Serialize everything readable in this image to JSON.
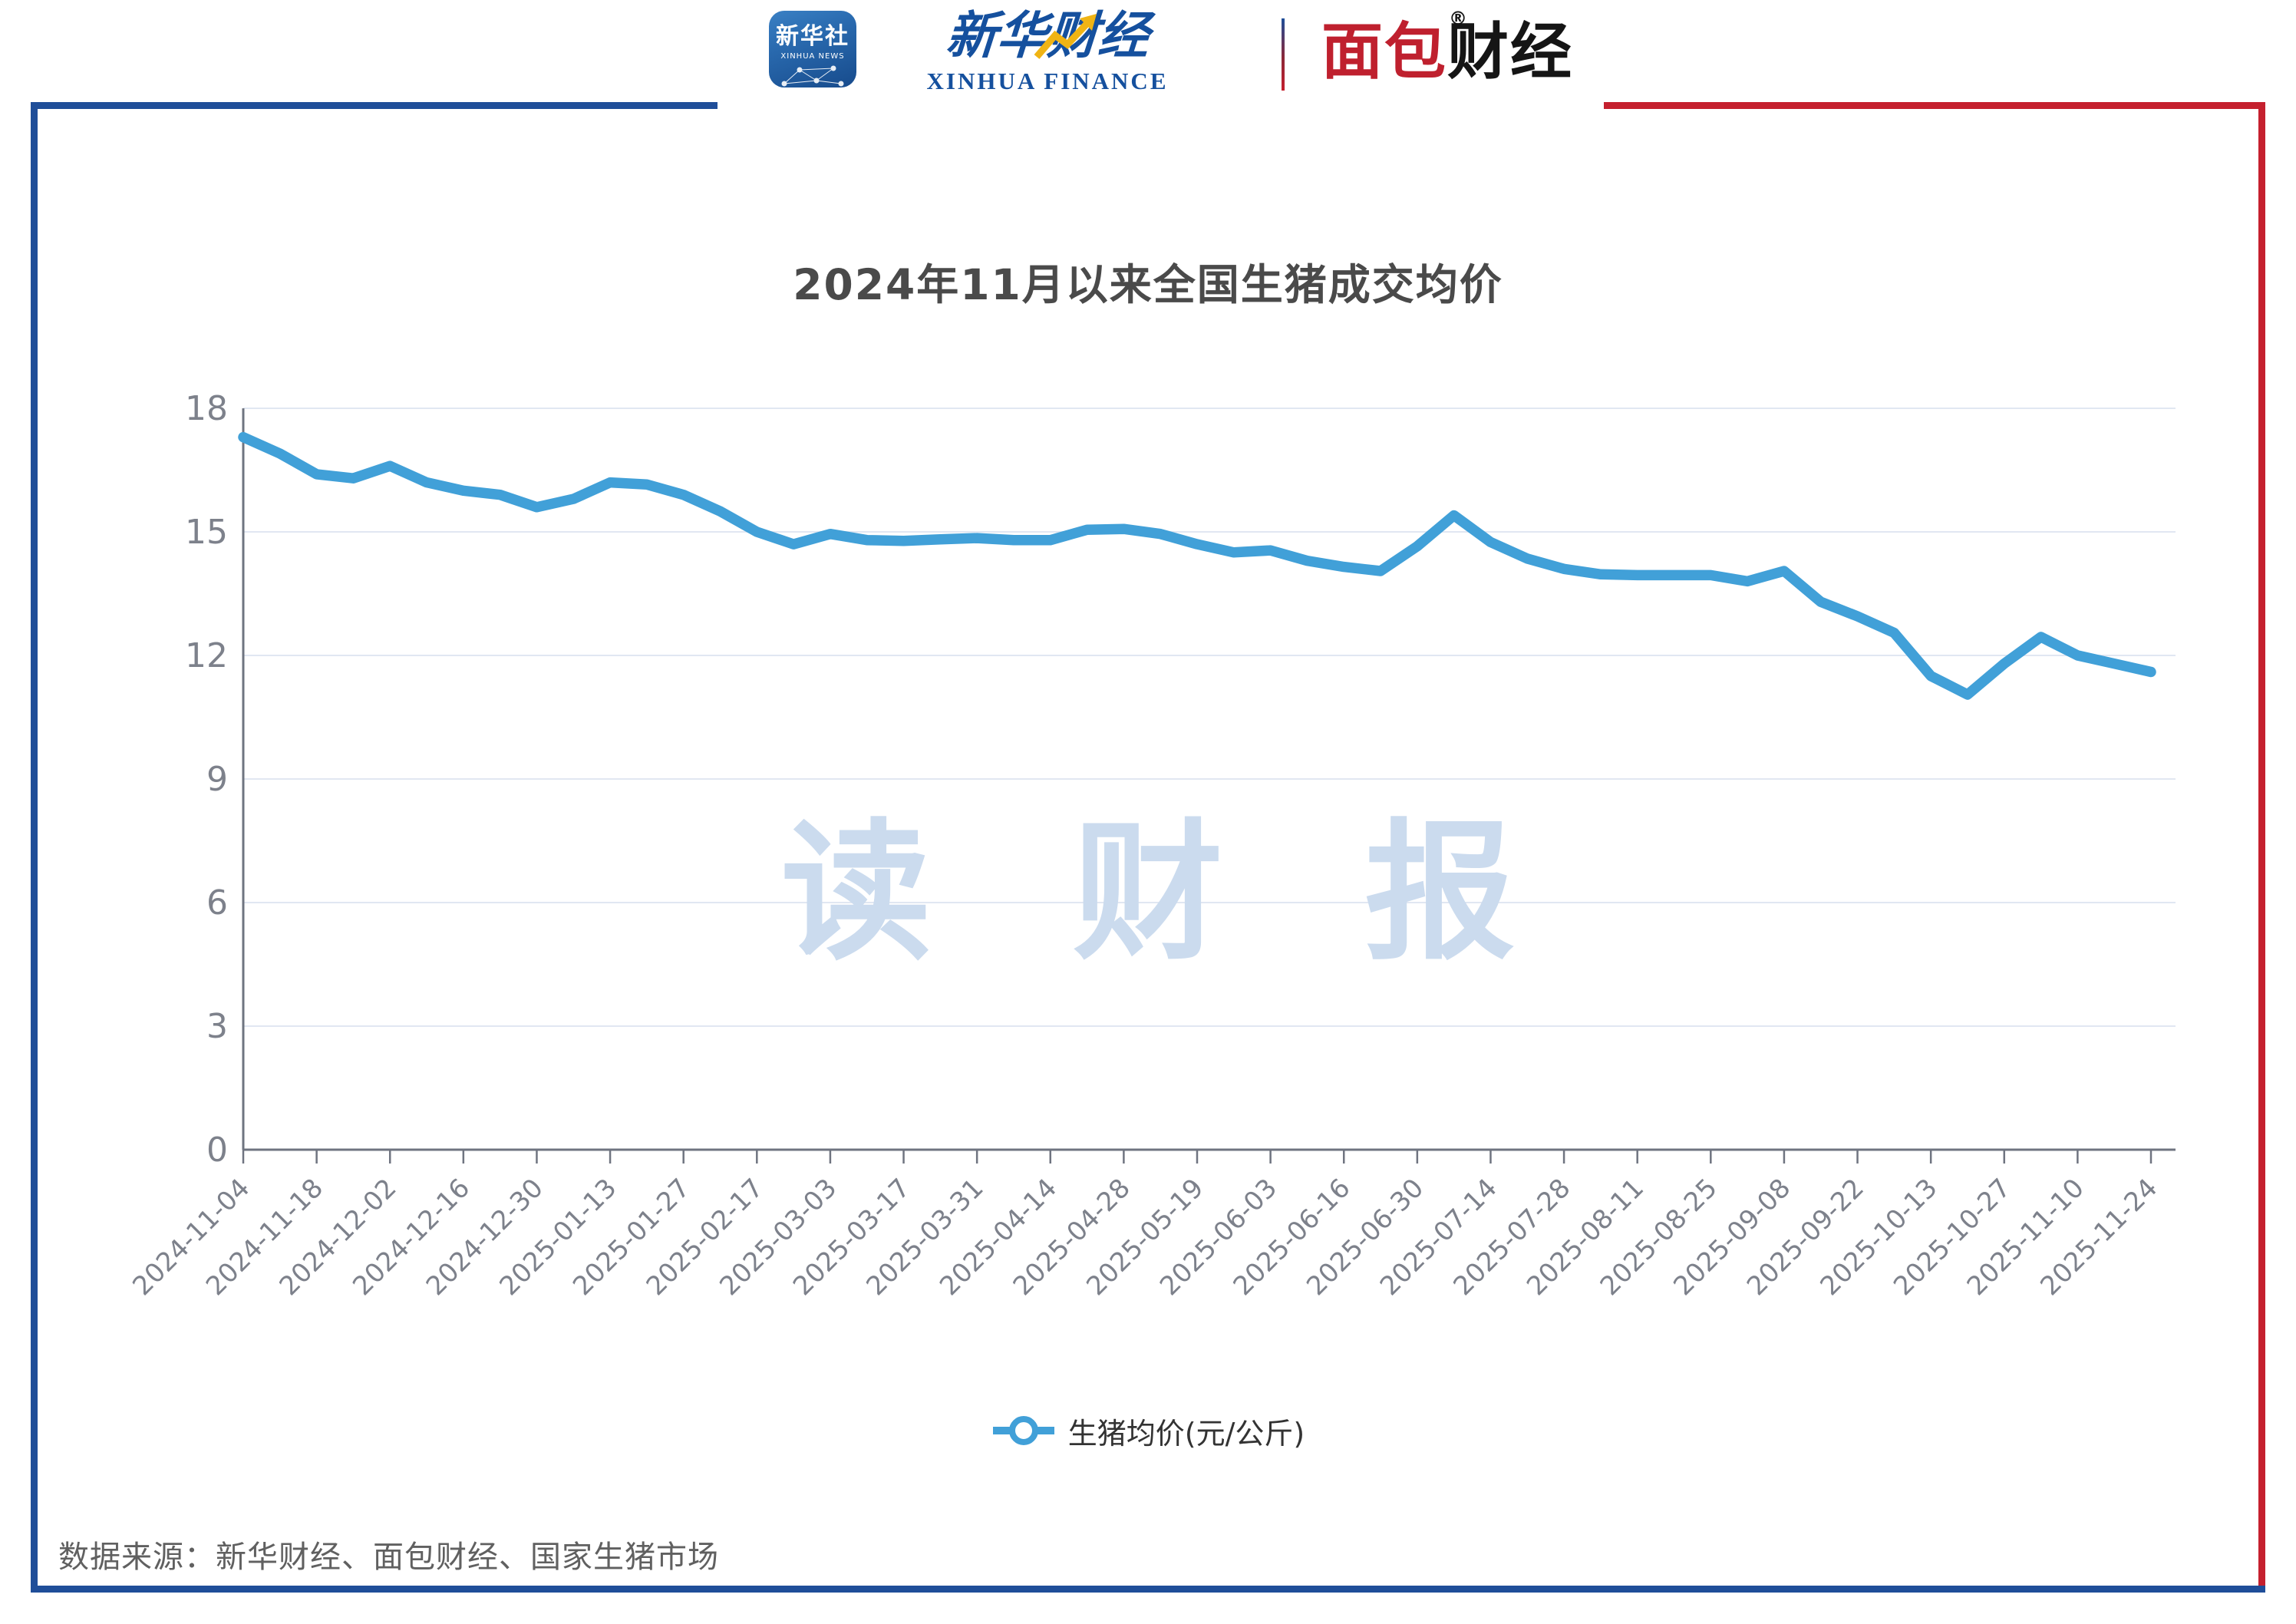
{
  "header": {
    "xinhua_news_icon": {
      "cn": "新华社",
      "en": "XINHUA NEWS"
    },
    "xinhua_finance": {
      "cn": "新华财经",
      "en": "XINHUA FINANCE"
    },
    "mianbao": {
      "part_red": "面包",
      "part_black": "财经",
      "reg_mark": "®"
    }
  },
  "colors": {
    "frame_blue": "#1f4e99",
    "frame_red": "#c5202e",
    "line_blue": "#41a0d8",
    "grid_line": "#e1e7f2",
    "axis_line": "#6f7480",
    "tick_label": "#7d818b",
    "title_text": "#4a4a4a",
    "watermark": "#cbdbee"
  },
  "chart_data": {
    "type": "line",
    "title": "2024年11月以来全国生猪成交均价",
    "watermark": "读 财 报",
    "legend_position": "bottom",
    "grid": true,
    "ylim": [
      0,
      18
    ],
    "ytick_step": 3,
    "ytick_labels": [
      "0",
      "3",
      "6",
      "9",
      "12",
      "15",
      "18"
    ],
    "x_tick_labels": [
      "2024-11-04",
      "2024-11-18",
      "2024-12-02",
      "2024-12-16",
      "2024-12-30",
      "2025-01-13",
      "2025-01-27",
      "2025-02-17",
      "2025-03-03",
      "2025-03-17",
      "2025-03-31",
      "2025-04-14",
      "2025-04-28",
      "2025-05-19",
      "2025-06-03",
      "2025-06-16",
      "2025-06-30",
      "2025-07-14",
      "2025-07-28",
      "2025-08-11",
      "2025-08-25",
      "2025-09-08",
      "2025-09-22",
      "2025-10-13",
      "2025-10-27",
      "2025-11-10",
      "2025-11-24"
    ],
    "label_every_n_points": 2,
    "series": [
      {
        "name": "生猪均价(元/公斤)",
        "values": [
          17.3,
          16.9,
          16.4,
          16.3,
          16.6,
          16.2,
          16.0,
          15.9,
          15.6,
          15.8,
          16.2,
          16.15,
          15.9,
          15.5,
          15.0,
          14.7,
          14.95,
          14.8,
          14.78,
          14.82,
          14.85,
          14.8,
          14.8,
          15.05,
          15.07,
          14.95,
          14.7,
          14.5,
          14.55,
          14.3,
          14.15,
          14.05,
          14.65,
          15.4,
          14.75,
          14.35,
          14.1,
          13.97,
          13.95,
          13.95,
          13.95,
          13.8,
          14.05,
          13.3,
          12.95,
          12.55,
          11.5,
          11.05,
          11.8,
          12.45,
          12.0,
          11.8,
          11.6
        ]
      }
    ]
  },
  "legend": {
    "label": "生猪均价(元/公斤)"
  },
  "footer": {
    "source_text": "数据来源：新华财经、面包财经、国家生猪市场"
  }
}
